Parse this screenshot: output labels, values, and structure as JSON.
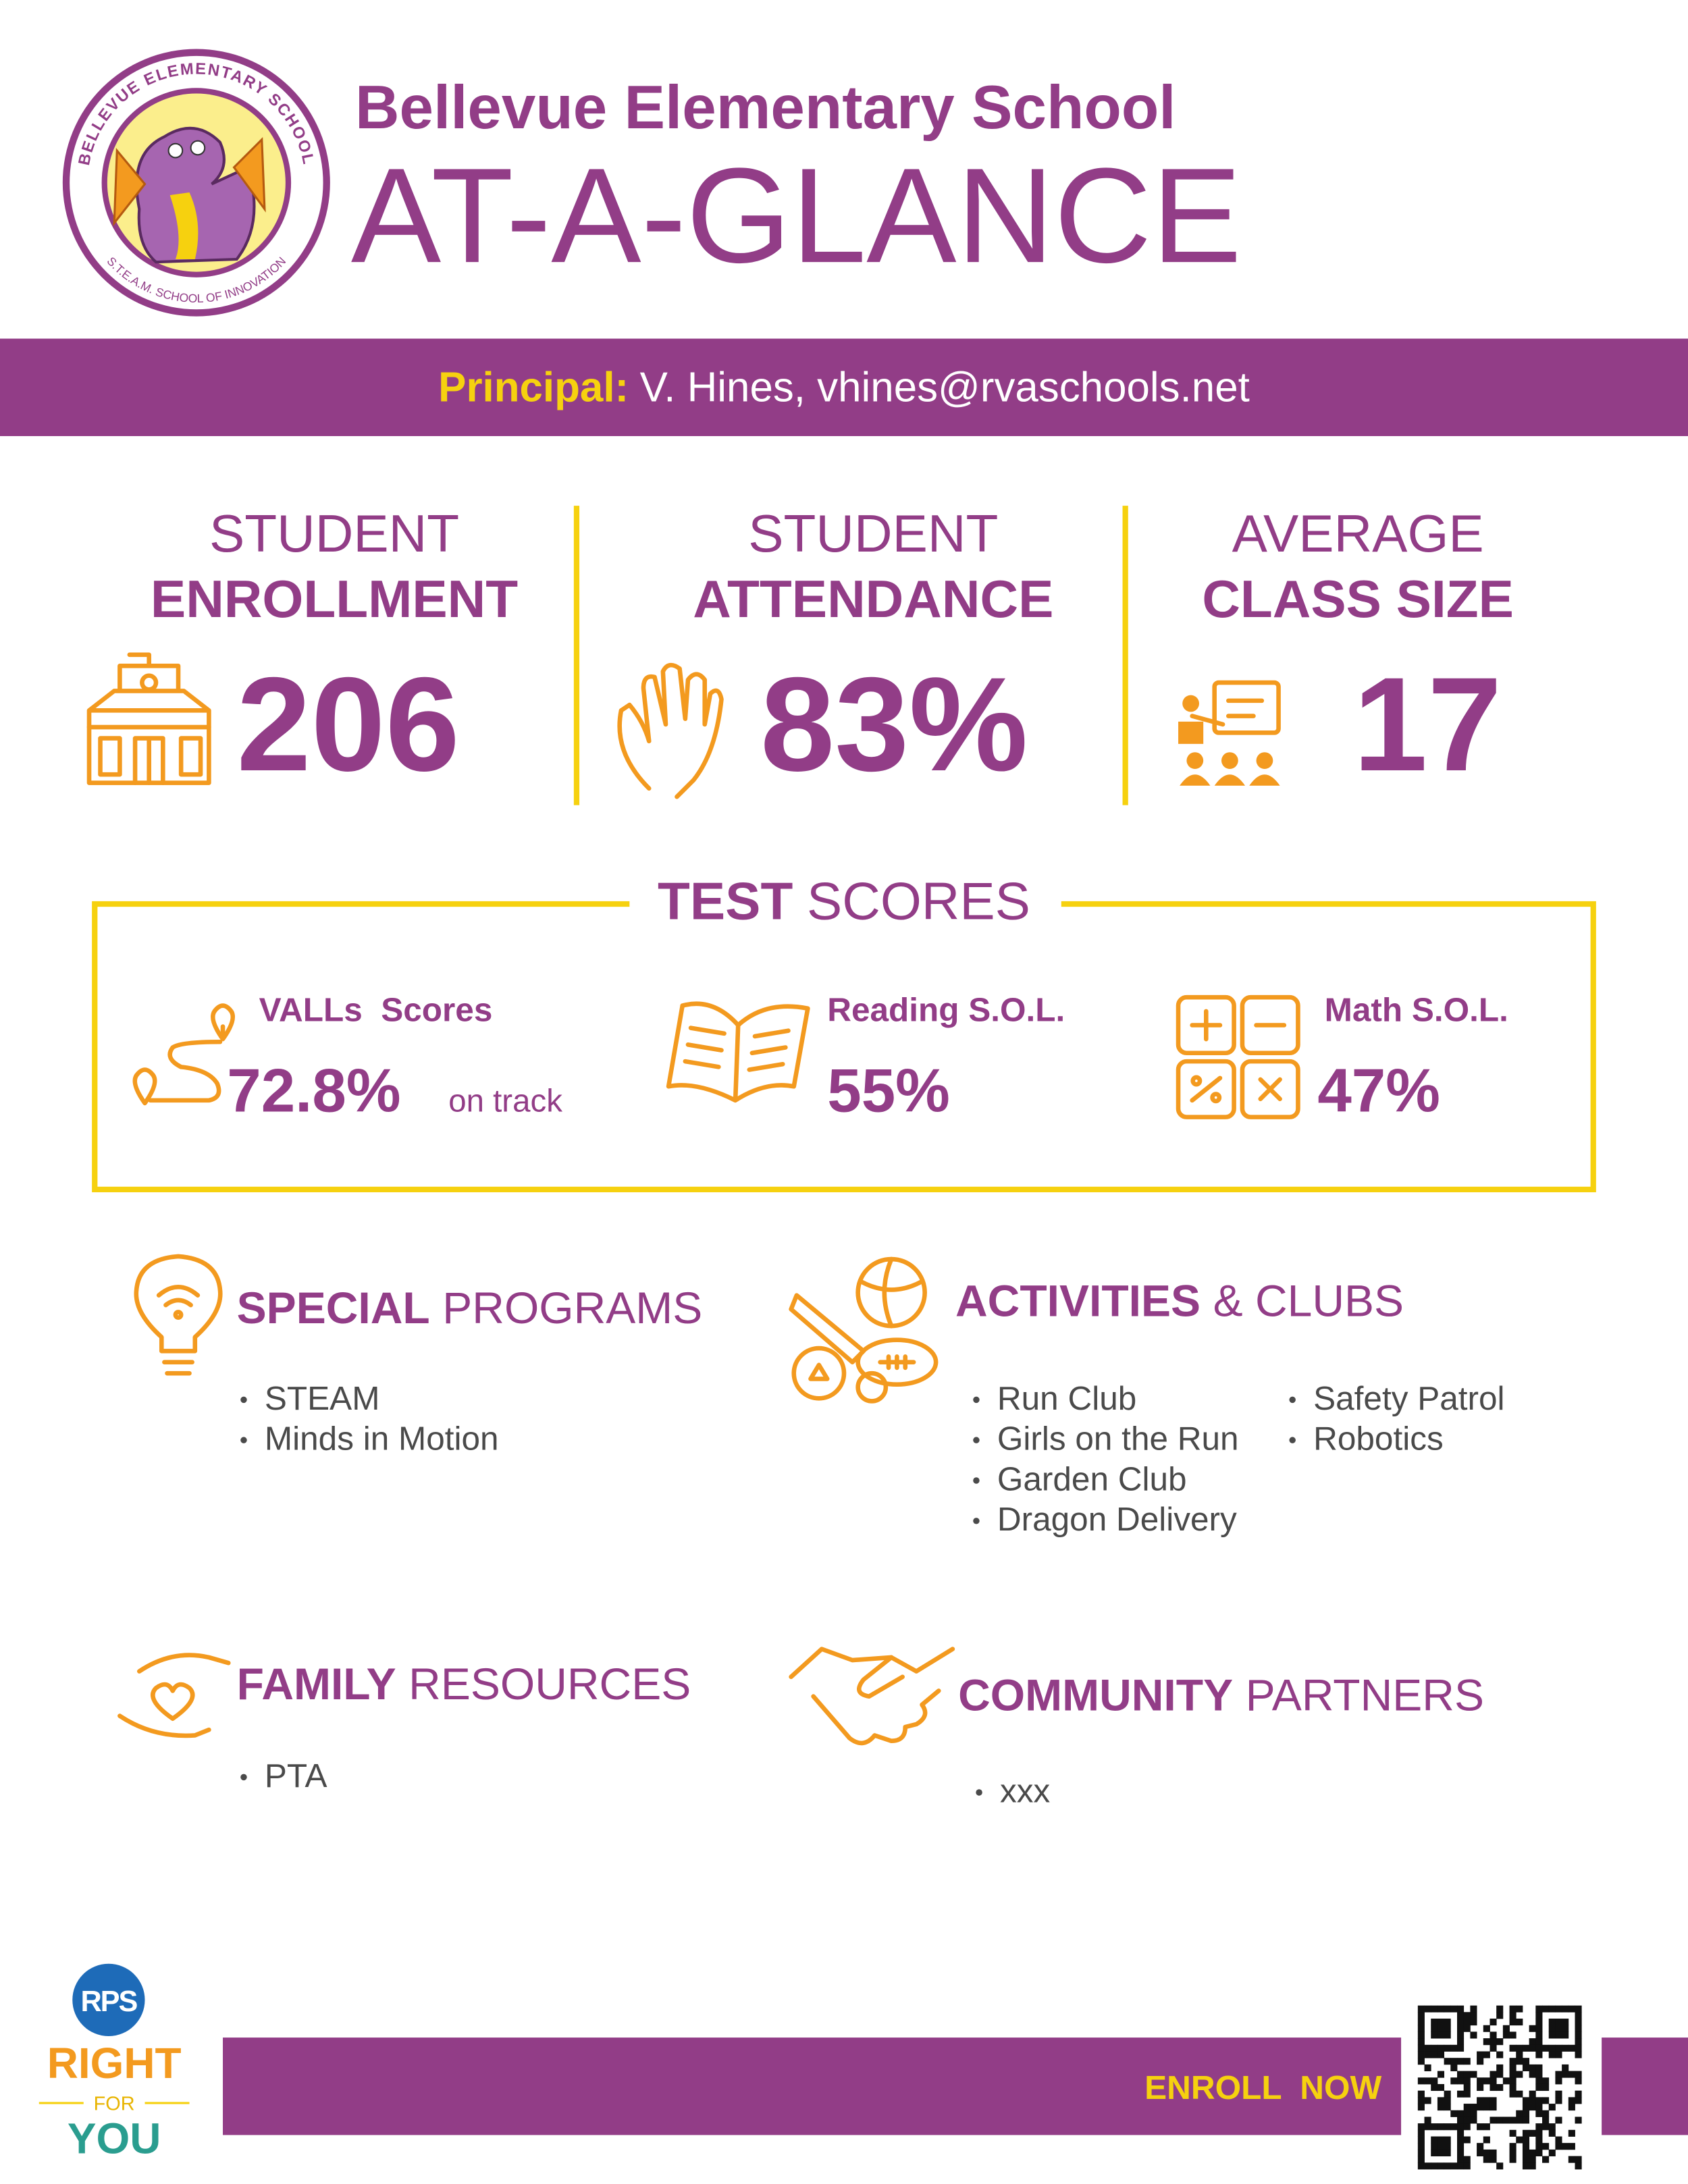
{
  "logo": {
    "top_arc": "BELLEVUE ELEMENTARY SCHOOL",
    "bottom_arc": "S.T.E.A.M. SCHOOL OF INNOVATION"
  },
  "header": {
    "school": "Bellevue Elementary School",
    "title": "AT-A-GLANCE"
  },
  "principal": {
    "label": "Principal:",
    "text": "V. Hines, vhines@rvaschools.net"
  },
  "stats": [
    {
      "line1": "STUDENT",
      "line2": "ENROLLMENT",
      "value": "206"
    },
    {
      "line1": "STUDENT",
      "line2": "ATTENDANCE",
      "value": "83%"
    },
    {
      "line1": "AVERAGE",
      "line2": "CLASS SIZE",
      "value": "17"
    }
  ],
  "test_scores": {
    "title_bold": "TEST",
    "title": "SCORES",
    "items": [
      {
        "label": "VALLs  Scores",
        "value": "72.8%",
        "note": "on track"
      },
      {
        "label": "Reading S.O.L.",
        "value": "55%"
      },
      {
        "label": "Math S.O.L.",
        "value": "47%"
      }
    ]
  },
  "sections": [
    {
      "title_bold": "SPECIAL",
      "title": "PROGRAMS",
      "columns": [
        [
          "STEAM",
          "Minds in Motion"
        ]
      ]
    },
    {
      "title_bold": "ACTIVITIES",
      "title": "& CLUBS",
      "columns": [
        [
          "Run Club",
          "Girls on the Run",
          "Garden Club",
          "Dragon Delivery"
        ],
        [
          "Safety Patrol",
          "Robotics"
        ]
      ]
    },
    {
      "title_bold": "FAMILY",
      "title": "RESOURCES",
      "columns": [
        [
          "PTA"
        ]
      ]
    },
    {
      "title_bold": "COMMUNITY",
      "title": "PARTNERS",
      "columns": [
        [
          "xxx"
        ]
      ]
    }
  ],
  "footer": {
    "badge": "RPS",
    "tagline": [
      "RIGHT",
      "FOR",
      "YOU"
    ],
    "cta": "ENROLL  NOW"
  }
}
